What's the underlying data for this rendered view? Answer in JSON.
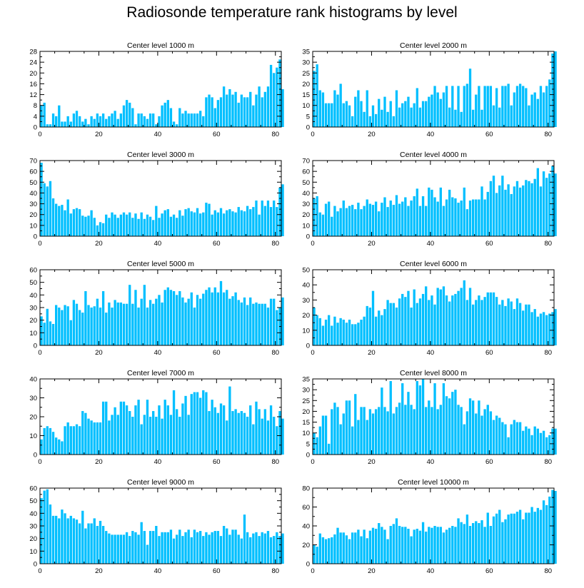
{
  "title": "Radiosonde temperature rank histograms by level",
  "colors": {
    "bar": "#00bfff",
    "axis": "#000000",
    "background": "#ffffff"
  },
  "chart_data": [
    {
      "type": "bar",
      "title": "Center level 1000 m",
      "xlim": [
        0,
        82
      ],
      "ylim": [
        0,
        28
      ],
      "xticks": [
        0,
        20,
        40,
        60,
        80
      ],
      "yticks": [
        0,
        4,
        8,
        12,
        16,
        20,
        24,
        28
      ],
      "values": [
        8,
        9,
        1,
        1,
        5,
        4,
        8,
        2,
        2,
        4,
        2,
        5,
        6,
        4,
        2,
        3,
        1,
        4,
        3,
        5,
        4,
        5,
        3,
        4,
        5,
        6,
        3,
        5,
        8,
        10,
        9,
        7,
        1,
        5,
        5,
        4,
        3,
        5,
        5,
        1,
        4,
        8,
        9,
        10,
        7,
        2,
        1,
        7,
        5,
        6,
        5,
        5,
        5,
        5,
        6,
        4,
        11,
        12,
        11,
        7,
        10,
        11,
        15,
        12,
        14,
        12,
        13,
        9,
        12,
        11,
        11,
        13,
        8,
        12,
        15,
        11,
        13,
        15,
        23,
        20,
        22,
        25,
        14
      ]
    },
    {
      "type": "bar",
      "title": "Center level 2000 m",
      "xlim": [
        0,
        82
      ],
      "ylim": [
        0,
        35
      ],
      "xticks": [
        0,
        20,
        40,
        60,
        80
      ],
      "yticks": [
        0,
        5,
        10,
        15,
        20,
        25,
        30,
        35
      ],
      "values": [
        26,
        29,
        17,
        16,
        11,
        11,
        11,
        17,
        15,
        20,
        11,
        12,
        10,
        5,
        14,
        17,
        12,
        7,
        17,
        5,
        10,
        6,
        13,
        8,
        14,
        7,
        12,
        5,
        17,
        9,
        11,
        12,
        14,
        9,
        11,
        18,
        9,
        12,
        12,
        14,
        15,
        19,
        16,
        13,
        16,
        19,
        9,
        19,
        8,
        19,
        7,
        19,
        20,
        27,
        8,
        15,
        19,
        8,
        19,
        19,
        19,
        10,
        18,
        9,
        19,
        19,
        20,
        10,
        16,
        19,
        20,
        19,
        18,
        10,
        15,
        16,
        13,
        19,
        16,
        19,
        22,
        34,
        35
      ]
    },
    {
      "type": "bar",
      "title": "Center level 3000 m",
      "xlim": [
        0,
        82
      ],
      "ylim": [
        0,
        70
      ],
      "xticks": [
        0,
        20,
        40,
        60,
        80
      ],
      "yticks": [
        0,
        10,
        20,
        30,
        40,
        50,
        60,
        70
      ],
      "values": [
        68,
        49,
        46,
        51,
        35,
        30,
        28,
        29,
        24,
        34,
        21,
        25,
        26,
        25,
        19,
        18,
        19,
        24,
        17,
        10,
        13,
        12,
        20,
        17,
        22,
        20,
        17,
        20,
        22,
        20,
        22,
        17,
        21,
        16,
        22,
        16,
        20,
        18,
        15,
        28,
        17,
        21,
        24,
        25,
        18,
        20,
        17,
        24,
        19,
        25,
        26,
        23,
        22,
        26,
        21,
        22,
        31,
        30,
        20,
        24,
        22,
        26,
        21,
        24,
        25,
        23,
        22,
        27,
        24,
        23,
        28,
        25,
        27,
        33,
        20,
        33,
        28,
        33,
        27,
        33,
        27,
        45,
        48
      ]
    },
    {
      "type": "bar",
      "title": "Center level 4000 m",
      "xlim": [
        0,
        82
      ],
      "ylim": [
        0,
        70
      ],
      "xticks": [
        0,
        20,
        40,
        60,
        80
      ],
      "yticks": [
        0,
        10,
        20,
        30,
        40,
        50,
        60,
        70
      ],
      "values": [
        35,
        37,
        22,
        20,
        30,
        32,
        18,
        28,
        23,
        26,
        33,
        26,
        28,
        29,
        25,
        31,
        25,
        28,
        34,
        30,
        29,
        32,
        23,
        31,
        36,
        27,
        33,
        29,
        38,
        30,
        32,
        36,
        28,
        33,
        37,
        44,
        28,
        37,
        28,
        45,
        43,
        36,
        32,
        45,
        28,
        34,
        43,
        36,
        35,
        31,
        33,
        45,
        25,
        33,
        34,
        34,
        34,
        46,
        34,
        41,
        51,
        56,
        40,
        47,
        56,
        43,
        48,
        39,
        46,
        51,
        45,
        47,
        52,
        51,
        49,
        53,
        63,
        46,
        60,
        54,
        58,
        65,
        58
      ]
    },
    {
      "type": "bar",
      "title": "Center level 5000 m",
      "xlim": [
        0,
        82
      ],
      "ylim": [
        0,
        60
      ],
      "xticks": [
        0,
        20,
        40,
        60,
        80
      ],
      "yticks": [
        0,
        10,
        20,
        30,
        40,
        50,
        60
      ],
      "values": [
        23,
        18,
        29,
        19,
        17,
        32,
        30,
        28,
        32,
        31,
        20,
        36,
        33,
        28,
        26,
        43,
        32,
        30,
        31,
        37,
        30,
        43,
        26,
        34,
        30,
        36,
        34,
        34,
        33,
        33,
        48,
        33,
        44,
        30,
        37,
        48,
        30,
        36,
        33,
        37,
        40,
        34,
        44,
        46,
        44,
        43,
        40,
        43,
        38,
        34,
        37,
        42,
        30,
        40,
        37,
        41,
        44,
        46,
        42,
        46,
        42,
        51,
        42,
        44,
        37,
        39,
        42,
        36,
        34,
        38,
        32,
        38,
        33,
        34,
        33,
        33,
        33,
        30,
        37,
        37,
        28,
        30,
        38
      ]
    },
    {
      "type": "bar",
      "title": "Center level 6000 m",
      "xlim": [
        0,
        82
      ],
      "ylim": [
        0,
        50
      ],
      "xticks": [
        0,
        20,
        40,
        60,
        80
      ],
      "yticks": [
        0,
        10,
        20,
        30,
        40,
        50
      ],
      "values": [
        25,
        20,
        18,
        13,
        17,
        20,
        13,
        19,
        15,
        18,
        17,
        15,
        17,
        14,
        14,
        15,
        17,
        19,
        26,
        25,
        36,
        19,
        23,
        20,
        24,
        30,
        28,
        28,
        25,
        31,
        34,
        32,
        36,
        25,
        37,
        28,
        31,
        34,
        39,
        30,
        33,
        27,
        38,
        37,
        39,
        33,
        29,
        33,
        34,
        36,
        38,
        43,
        30,
        38,
        27,
        30,
        33,
        30,
        32,
        35,
        35,
        35,
        32,
        27,
        30,
        26,
        31,
        29,
        24,
        31,
        28,
        23,
        27,
        27,
        22,
        24,
        19,
        21,
        22,
        20,
        21,
        22,
        24
      ]
    },
    {
      "type": "bar",
      "title": "Center level 7000 m",
      "xlim": [
        0,
        82
      ],
      "ylim": [
        0,
        40
      ],
      "xticks": [
        0,
        20,
        40,
        60,
        80
      ],
      "yticks": [
        0,
        10,
        20,
        30,
        40
      ],
      "values": [
        8,
        14,
        15,
        14,
        12,
        9,
        8,
        7,
        15,
        17,
        15,
        15,
        16,
        15,
        23,
        22,
        19,
        18,
        17,
        17,
        17,
        28,
        28,
        18,
        21,
        25,
        21,
        28,
        28,
        26,
        23,
        20,
        26,
        29,
        16,
        21,
        29,
        20,
        23,
        20,
        26,
        19,
        29,
        26,
        21,
        34,
        24,
        20,
        27,
        31,
        21,
        32,
        33,
        33,
        30,
        34,
        33,
        23,
        29,
        25,
        22,
        27,
        26,
        18,
        36,
        23,
        24,
        22,
        23,
        22,
        20,
        26,
        16,
        28,
        24,
        19,
        24,
        18,
        26,
        20,
        15,
        23,
        19
      ]
    },
    {
      "type": "bar",
      "title": "Center level 8000 m",
      "xlim": [
        0,
        82
      ],
      "ylim": [
        0,
        35
      ],
      "xticks": [
        0,
        20,
        40,
        60,
        80
      ],
      "yticks": [
        0,
        5,
        10,
        15,
        20,
        25,
        30,
        35
      ],
      "values": [
        10,
        8,
        13,
        18,
        18,
        5,
        21,
        24,
        22,
        14,
        19,
        25,
        25,
        13,
        28,
        16,
        22,
        22,
        16,
        21,
        19,
        21,
        22,
        31,
        22,
        20,
        34,
        19,
        22,
        24,
        33,
        23,
        29,
        23,
        21,
        34,
        32,
        35,
        22,
        25,
        22,
        33,
        21,
        23,
        33,
        27,
        26,
        29,
        30,
        23,
        22,
        14,
        20,
        26,
        25,
        19,
        25,
        18,
        21,
        23,
        20,
        16,
        18,
        17,
        15,
        14,
        8,
        14,
        16,
        15,
        15,
        11,
        13,
        12,
        9,
        13,
        12,
        10,
        11,
        8,
        9,
        12,
        12
      ]
    },
    {
      "type": "bar",
      "title": "Center level 9000 m",
      "xlim": [
        0,
        82
      ],
      "ylim": [
        0,
        60
      ],
      "xticks": [
        0,
        20,
        40,
        60,
        80
      ],
      "yticks": [
        0,
        10,
        20,
        30,
        40,
        50,
        60
      ],
      "values": [
        52,
        58,
        59,
        47,
        38,
        38,
        36,
        43,
        40,
        36,
        38,
        36,
        35,
        32,
        42,
        28,
        32,
        32,
        36,
        30,
        34,
        30,
        26,
        24,
        23,
        23,
        23,
        23,
        23,
        25,
        22,
        26,
        25,
        23,
        33,
        26,
        15,
        26,
        26,
        30,
        22,
        25,
        25,
        25,
        27,
        20,
        23,
        27,
        22,
        25,
        27,
        21,
        27,
        25,
        26,
        22,
        25,
        23,
        25,
        26,
        26,
        22,
        30,
        28,
        23,
        27,
        27,
        23,
        20,
        39,
        25,
        21,
        24,
        25,
        22,
        25,
        24,
        26,
        21,
        22,
        25,
        22,
        24
      ]
    },
    {
      "type": "bar",
      "title": "Center level 10000 m",
      "xlim": [
        0,
        82
      ],
      "ylim": [
        0,
        80
      ],
      "xticks": [
        0,
        20,
        40,
        60,
        80
      ],
      "yticks": [
        0,
        20,
        40,
        60,
        80
      ],
      "values": [
        20,
        18,
        32,
        28,
        26,
        27,
        28,
        31,
        38,
        33,
        33,
        30,
        26,
        33,
        33,
        36,
        29,
        36,
        27,
        35,
        38,
        37,
        43,
        39,
        36,
        26,
        40,
        42,
        48,
        40,
        39,
        39,
        37,
        29,
        36,
        37,
        35,
        44,
        34,
        39,
        38,
        40,
        39,
        39,
        33,
        36,
        38,
        40,
        39,
        48,
        44,
        42,
        52,
        40,
        43,
        45,
        43,
        46,
        39,
        54,
        40,
        50,
        53,
        57,
        44,
        47,
        52,
        53,
        53,
        55,
        57,
        47,
        54,
        54,
        60,
        55,
        59,
        57,
        67,
        62,
        71,
        78,
        77
      ]
    }
  ]
}
